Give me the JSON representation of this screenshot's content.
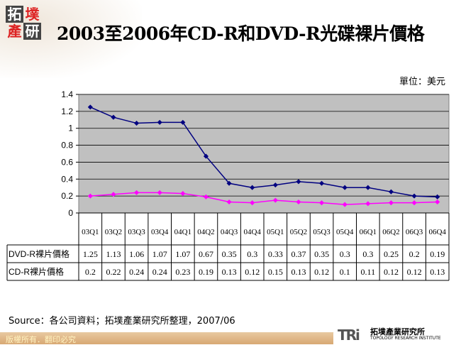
{
  "header": {
    "logo_text": "拓墣產研",
    "title": "2003至2006年CD-R和DVD-R光碟裸片價格",
    "unit": "單位：美元"
  },
  "chart_data": {
    "type": "line",
    "title": "2003至2006年CD-R和DVD-R光碟裸片價格",
    "categories": [
      "03Q1",
      "03Q2",
      "03Q3",
      "03Q4",
      "04Q1",
      "04Q2",
      "04Q3",
      "04Q4",
      "05Q1",
      "05Q2",
      "05Q3",
      "05Q4",
      "06Q1",
      "06Q2",
      "06Q3",
      "06Q4"
    ],
    "series": [
      {
        "name": "DVD-R裸片價格",
        "color": "#000080",
        "values": [
          1.25,
          1.13,
          1.06,
          1.07,
          1.07,
          0.67,
          0.35,
          0.3,
          0.33,
          0.37,
          0.35,
          0.3,
          0.3,
          0.25,
          0.2,
          0.19
        ]
      },
      {
        "name": "CD-R裸片價格",
        "color": "#ff00ff",
        "values": [
          0.2,
          0.22,
          0.24,
          0.24,
          0.23,
          0.19,
          0.13,
          0.12,
          0.15,
          0.13,
          0.12,
          0.1,
          0.11,
          0.12,
          0.12,
          0.13
        ]
      }
    ],
    "yticks": [
      "0",
      "0.2",
      "0.4",
      "0.6",
      "0.8",
      "1",
      "1.2",
      "1.4"
    ],
    "ylim": [
      0,
      1.4
    ],
    "grid": true,
    "plot_background": "#c0c0c0",
    "legend": "data table below"
  },
  "source": "Source：各公司資料；拓墣產業研究所整理，2007/06",
  "footer": {
    "copyright": "版權所有．翻印必究",
    "brand_abbr": "TRi",
    "brand_cn": "拓墣產業研究所",
    "brand_en": "TOPOLOGY RESEARCH INSTITUTE"
  }
}
